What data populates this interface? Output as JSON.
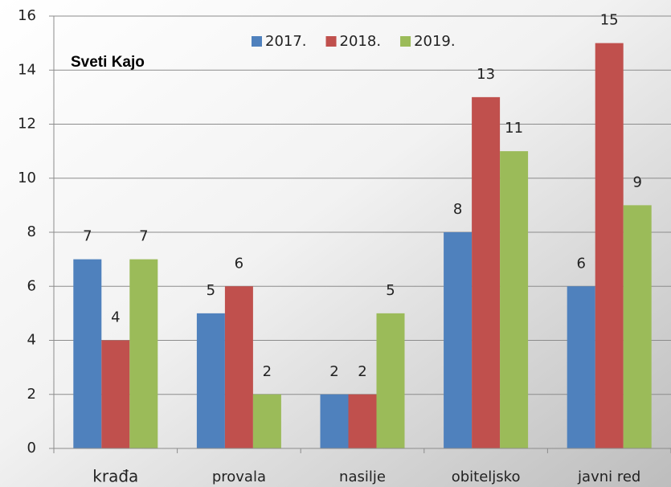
{
  "chart_data": {
    "type": "bar",
    "title": "Sveti Kajo",
    "categories": [
      "krađa",
      "provala",
      "nasilje",
      "obiteljsko",
      "javni red"
    ],
    "series": [
      {
        "name": "2017.",
        "color": "#4f81bd",
        "values": [
          7,
          5,
          2,
          8,
          6
        ]
      },
      {
        "name": "2018.",
        "color": "#c0504d",
        "values": [
          4,
          6,
          2,
          13,
          15
        ]
      },
      {
        "name": "2019.",
        "color": "#9bbb59",
        "values": [
          7,
          2,
          5,
          11,
          9
        ]
      }
    ],
    "ylim": [
      0,
      16
    ],
    "yticks": [
      0,
      2,
      4,
      6,
      8,
      10,
      12,
      14,
      16
    ],
    "grid": true,
    "legend": "top"
  }
}
